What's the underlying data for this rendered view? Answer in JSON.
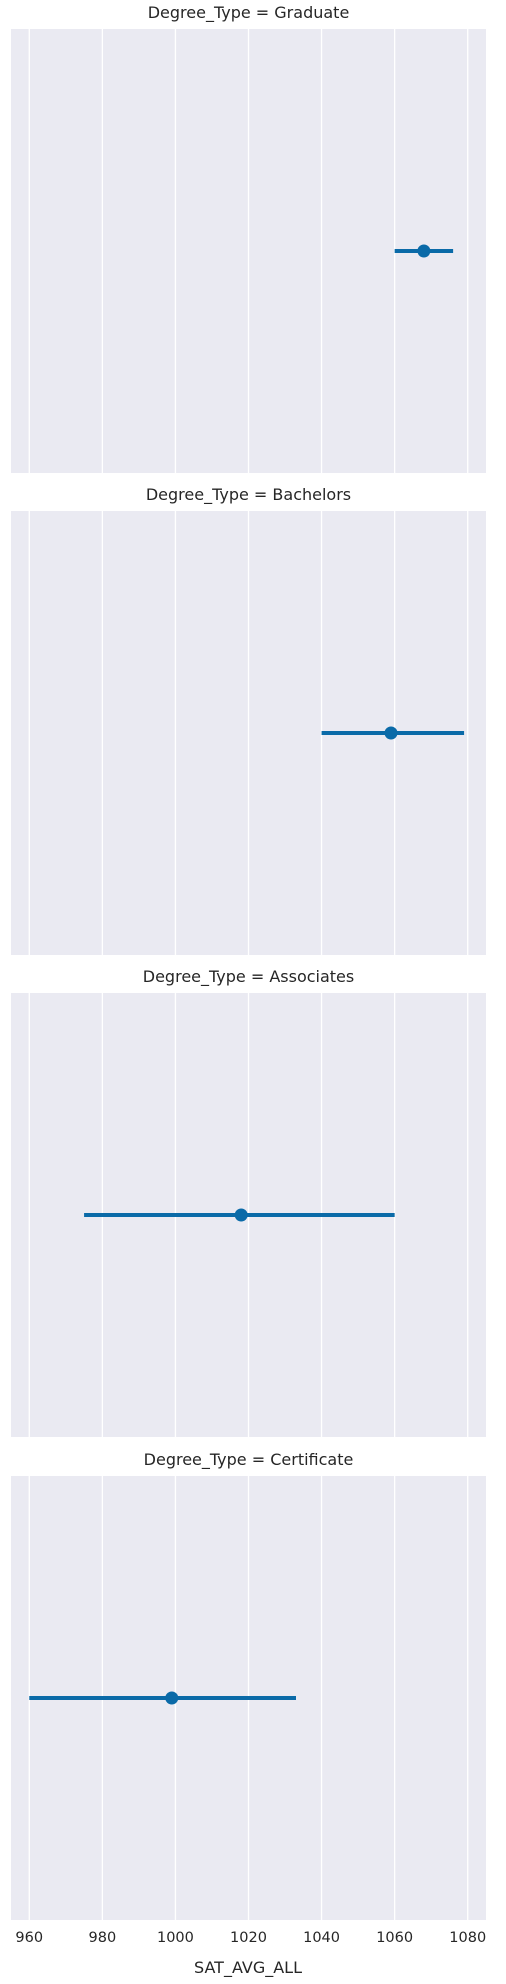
{
  "chart_data": {
    "type": "pointplot",
    "facet_variable": "Degree_Type",
    "xlabel": "SAT_AVG_ALL",
    "xlim": [
      955,
      1085
    ],
    "xticks": [
      960,
      980,
      1000,
      1020,
      1040,
      1060,
      1080
    ],
    "grid": true,
    "color": "#0a6aa8",
    "panel_background": "#eaeaf2",
    "facets": [
      {
        "title": "Degree_Type = Graduate",
        "category": "Graduate",
        "estimate": 1068,
        "ci": [
          1060,
          1076
        ]
      },
      {
        "title": "Degree_Type = Bachelors",
        "category": "Bachelors",
        "estimate": 1059,
        "ci": [
          1040,
          1079
        ]
      },
      {
        "title": "Degree_Type = Associates",
        "category": "Associates",
        "estimate": 1018,
        "ci": [
          975,
          1060
        ]
      },
      {
        "title": "Degree_Type = Certificate",
        "category": "Certificate",
        "estimate": 999,
        "ci": [
          960,
          1033
        ]
      }
    ]
  }
}
